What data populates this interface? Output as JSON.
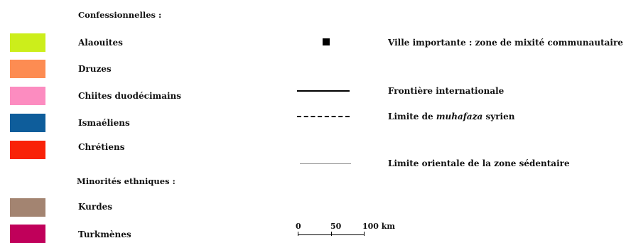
{
  "legend": {
    "confessional_heading": "Confessionnelles :",
    "confessional_items": [
      {
        "label": "Alaouites",
        "color": "#ccee1b"
      },
      {
        "label": "Druzes",
        "color": "#fd8c52"
      },
      {
        "label": "Chiites duodécimains",
        "color": "#fc8cc0"
      },
      {
        "label": "Ismaéliens",
        "color": "#0e5d9b"
      },
      {
        "label": "Chrétiens",
        "color": "#f92208"
      }
    ],
    "ethnic_heading": "Minorités ethniques :",
    "ethnic_items": [
      {
        "label": "Kurdes",
        "color": "#a38471"
      },
      {
        "label": "Turkmènes",
        "color": "#c0005a"
      }
    ],
    "symbols": {
      "city": {
        "icon": "black-square",
        "label": "Ville importante : zone de mixité communautaire"
      },
      "frontier": {
        "icon": "solid-line",
        "label": "Frontière internationale"
      },
      "mohafaza": {
        "icon": "dashed-line",
        "label_before": "Limite de",
        "label_italic": "muhafaza",
        "label_after": "syrien"
      },
      "sedentary": {
        "icon": "thin-grey-line",
        "label": "Limite orientale de la zone sédentaire"
      }
    },
    "scale": {
      "zero": "0",
      "fifty": "50",
      "hundred": "100 km"
    }
  }
}
